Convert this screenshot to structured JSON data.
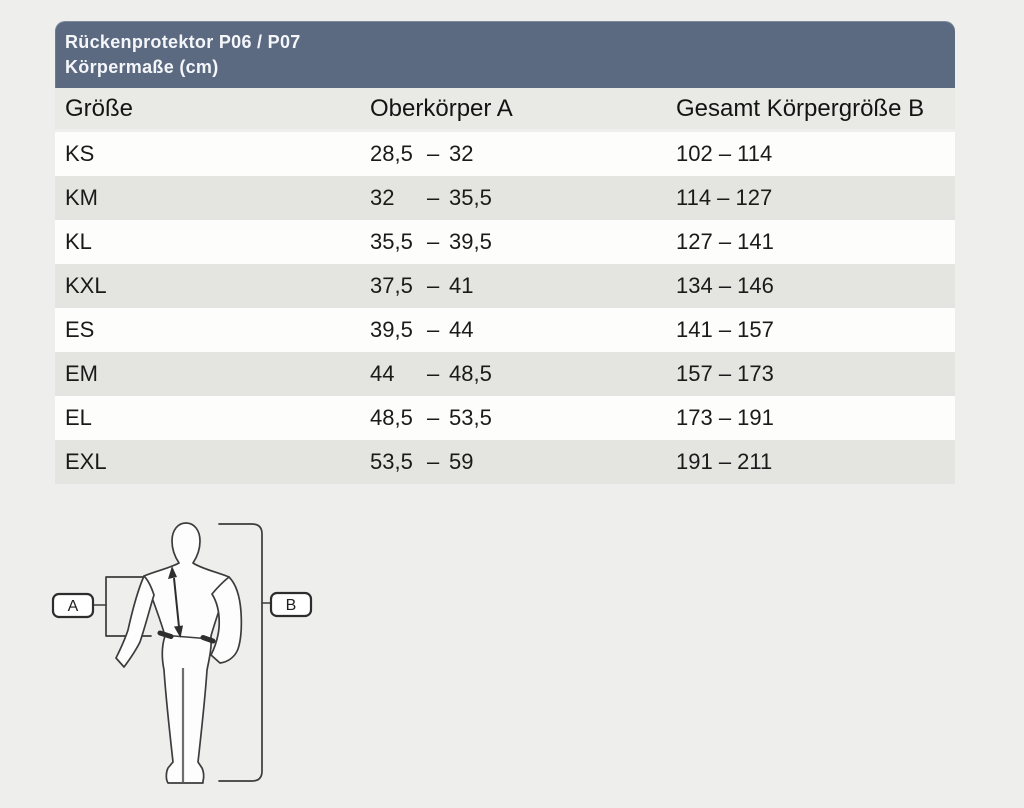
{
  "header": {
    "title_line1": "Rückenprotektor P06 / P07",
    "title_line2": "Körpermaße (cm)"
  },
  "table": {
    "columns": [
      "Größe",
      "Oberkörper A",
      "Gesamt Körpergröße B"
    ],
    "dash": "–",
    "rows": [
      {
        "size": "KS",
        "a_min": "28,5",
        "a_max": "32",
        "b_min": "102",
        "b_max": "114"
      },
      {
        "size": "KM",
        "a_min": "32",
        "a_max": "35,5",
        "b_min": "114",
        "b_max": "127"
      },
      {
        "size": "KL",
        "a_min": "35,5",
        "a_max": "39,5",
        "b_min": "127",
        "b_max": "141"
      },
      {
        "size": "KXL",
        "a_min": "37,5",
        "a_max": "41",
        "b_min": "134",
        "b_max": "146"
      },
      {
        "size": "ES",
        "a_min": "39,5",
        "a_max": "44",
        "b_min": "141",
        "b_max": "157"
      },
      {
        "size": "EM",
        "a_min": "44",
        "a_max": "48,5",
        "b_min": "157",
        "b_max": "173"
      },
      {
        "size": "EL",
        "a_min": "48,5",
        "a_max": "53,5",
        "b_min": "173",
        "b_max": "191"
      },
      {
        "size": "EXL",
        "a_min": "53,5",
        "a_max": "59",
        "b_min": "191",
        "b_max": "211"
      }
    ]
  },
  "diagram": {
    "label_a": "A",
    "label_b": "B"
  },
  "colors": {
    "panel_header_bg": "#5b6a81",
    "panel_header_text": "#f4f6f9",
    "column_header_bg": "#e9e9e5",
    "row_bg": "#fdfdfc",
    "row_alt_bg": "#e4e4e0",
    "page_bg": "#eeeeec",
    "text": "#1a1a1a",
    "figure_outline": "#3c3c3c"
  },
  "chart_data": {
    "type": "table",
    "title": "Rückenprotektor P06 / P07 — Körpermaße (cm)",
    "columns": [
      "Größe",
      "Oberkörper A",
      "Gesamt Körpergröße B"
    ],
    "rows": [
      [
        "KS",
        "28,5 – 32",
        "102 – 114"
      ],
      [
        "KM",
        "32 – 35,5",
        "114 – 127"
      ],
      [
        "KL",
        "35,5 – 39,5",
        "127 – 141"
      ],
      [
        "KXL",
        "37,5 – 41",
        "134 – 146"
      ],
      [
        "ES",
        "39,5 – 44",
        "141 – 157"
      ],
      [
        "EM",
        "44 – 48,5",
        "157 – 173"
      ],
      [
        "EL",
        "48,5 – 53,5",
        "173 – 191"
      ],
      [
        "EXL",
        "53,5 – 59",
        "191 – 211"
      ]
    ]
  }
}
